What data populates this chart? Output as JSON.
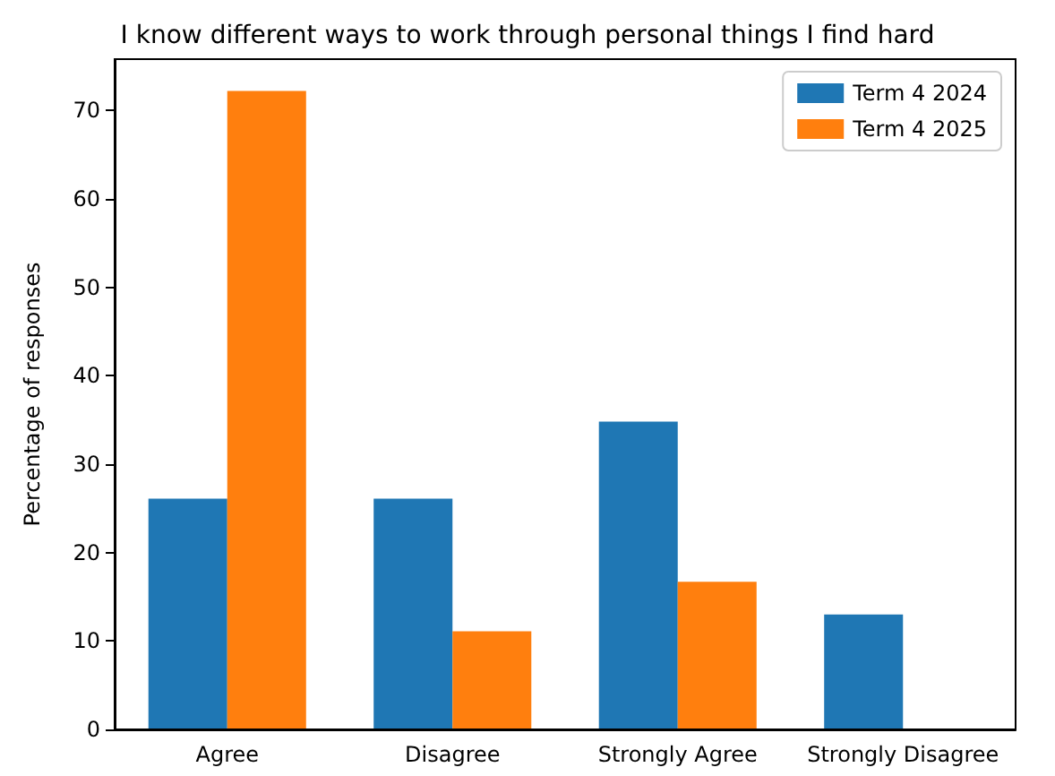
{
  "chart_data": {
    "type": "bar",
    "title": "I know different ways to work through personal things I find hard",
    "ylabel": "Percentage of responses",
    "categories": [
      "Agree",
      "Disagree",
      "Strongly Agree",
      "Strongly Disagree"
    ],
    "series": [
      {
        "name": "Term 4 2024",
        "color": "#1f77b4",
        "values": [
          26.1,
          26.1,
          34.8,
          13.0
        ]
      },
      {
        "name": "Term 4 2025",
        "color": "#ff7f0e",
        "values": [
          72.2,
          11.1,
          16.7,
          0
        ]
      }
    ],
    "ylim": [
      0,
      75.8
    ],
    "yticks": [
      0,
      10,
      20,
      30,
      40,
      50,
      60,
      70
    ],
    "grid": false,
    "legend": "top right"
  }
}
